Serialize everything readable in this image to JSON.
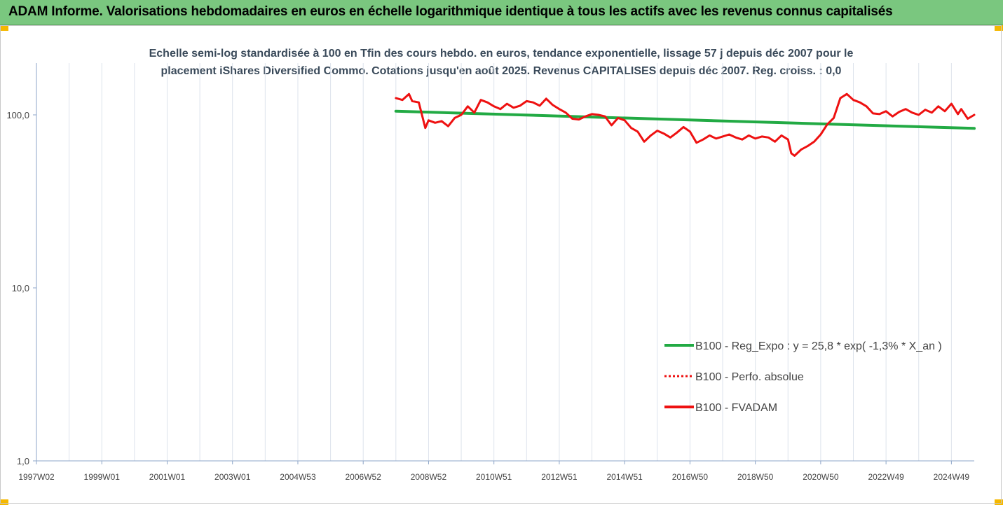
{
  "header": {
    "title": "ADAM Informe. Valorisations hebdomadaires en euros en échelle logarithmique identique à tous les actifs avec les revenus connus capitalisés"
  },
  "chart_data": {
    "type": "line",
    "title": "Echelle semi-log standardisée à 100 en Tfin des cours hebdo. en euros, tendance exponentielle, lissage 57 j depuis déc 2007 pour le placement iShares Diversified Commo. Cotations jusqu'en août 2025. Revenus CAPITALISES depuis déc 2007. Reg. croiss. : 0,0",
    "title_line1": "Echelle semi-log standardisée à 100 en Tfin des cours hebdo. en euros, tendance exponentielle, lissage 57 j depuis déc 2007 pour le",
    "title_line2": "placement iShares Diversified Commo. Cotations jusqu'en août 2025. Revenus CAPITALISES depuis déc 2007. Reg. croiss. : 0,0",
    "y_scale": "log",
    "ylim": [
      1,
      200
    ],
    "y_ticks": [
      {
        "value": 1,
        "label": "1,0"
      },
      {
        "value": 10,
        "label": "10,0"
      },
      {
        "value": 100,
        "label": "100,0"
      }
    ],
    "x_unit": "year",
    "xlim": [
      1997.0,
      2025.7
    ],
    "x_ticks": [
      {
        "value": 1997.0,
        "label": "1997W02"
      },
      {
        "value": 1999.0,
        "label": "1999W01"
      },
      {
        "value": 2001.0,
        "label": "2001W01"
      },
      {
        "value": 2003.0,
        "label": "2003W01"
      },
      {
        "value": 2005.0,
        "label": "2004W53"
      },
      {
        "value": 2007.0,
        "label": "2006W52"
      },
      {
        "value": 2009.0,
        "label": "2008W52"
      },
      {
        "value": 2011.0,
        "label": "2010W51"
      },
      {
        "value": 2013.0,
        "label": "2012W51"
      },
      {
        "value": 2015.0,
        "label": "2014W51"
      },
      {
        "value": 2017.0,
        "label": "2016W50"
      },
      {
        "value": 2019.0,
        "label": "2018W50"
      },
      {
        "value": 2021.0,
        "label": "2020W50"
      },
      {
        "value": 2023.0,
        "label": "2022W49"
      },
      {
        "value": 2025.0,
        "label": "2024W49"
      }
    ],
    "grid": "vertical",
    "legend_position": "right",
    "series": [
      {
        "name": "B100 - Reg_Expo : y = 25,8 * exp( -1,3% *  X_an )",
        "color": "#22aa44",
        "style": "solid",
        "x": [
          2008.0,
          2025.7
        ],
        "y": [
          105.0,
          83.5
        ]
      },
      {
        "name": "B100 - Perfo. absolue",
        "color": "#ee1111",
        "style": "dotted",
        "x": [],
        "y": []
      },
      {
        "name": "B100 - FVADAM",
        "color": "#ee1111",
        "style": "solid",
        "x": [
          2008.0,
          2008.2,
          2008.4,
          2008.5,
          2008.7,
          2008.9,
          2009.0,
          2009.2,
          2009.4,
          2009.6,
          2009.8,
          2010.0,
          2010.2,
          2010.4,
          2010.6,
          2010.8,
          2011.0,
          2011.2,
          2011.4,
          2011.6,
          2011.8,
          2012.0,
          2012.2,
          2012.4,
          2012.6,
          2012.8,
          2013.0,
          2013.2,
          2013.4,
          2013.6,
          2013.8,
          2014.0,
          2014.2,
          2014.4,
          2014.6,
          2014.8,
          2015.0,
          2015.2,
          2015.4,
          2015.6,
          2015.8,
          2016.0,
          2016.2,
          2016.4,
          2016.6,
          2016.8,
          2017.0,
          2017.2,
          2017.4,
          2017.6,
          2017.8,
          2018.0,
          2018.2,
          2018.4,
          2018.6,
          2018.8,
          2019.0,
          2019.2,
          2019.4,
          2019.6,
          2019.8,
          2020.0,
          2020.1,
          2020.2,
          2020.4,
          2020.6,
          2020.8,
          2021.0,
          2021.2,
          2021.4,
          2021.6,
          2021.8,
          2022.0,
          2022.2,
          2022.4,
          2022.6,
          2022.8,
          2023.0,
          2023.2,
          2023.4,
          2023.6,
          2023.8,
          2024.0,
          2024.2,
          2024.4,
          2024.6,
          2024.8,
          2025.0,
          2025.2,
          2025.3,
          2025.5,
          2025.7
        ],
        "y": [
          125,
          122,
          132,
          120,
          118,
          84,
          93,
          90,
          92,
          86,
          96,
          100,
          112,
          103,
          122,
          118,
          112,
          108,
          116,
          110,
          113,
          120,
          118,
          113,
          124,
          114,
          108,
          103,
          95,
          94,
          98,
          101,
          100,
          98,
          87,
          96,
          93,
          84,
          80,
          70,
          76,
          81,
          78,
          74,
          79,
          85,
          80,
          69,
          72,
          76,
          73,
          75,
          77,
          74,
          72,
          76,
          73,
          75,
          74,
          70,
          76,
          72,
          60,
          58,
          63,
          66,
          70,
          77,
          88,
          96,
          125,
          132,
          122,
          118,
          112,
          102,
          101,
          105,
          98,
          104,
          108,
          103,
          100,
          107,
          103,
          112,
          105,
          116,
          101,
          108,
          95,
          100
        ]
      }
    ]
  }
}
